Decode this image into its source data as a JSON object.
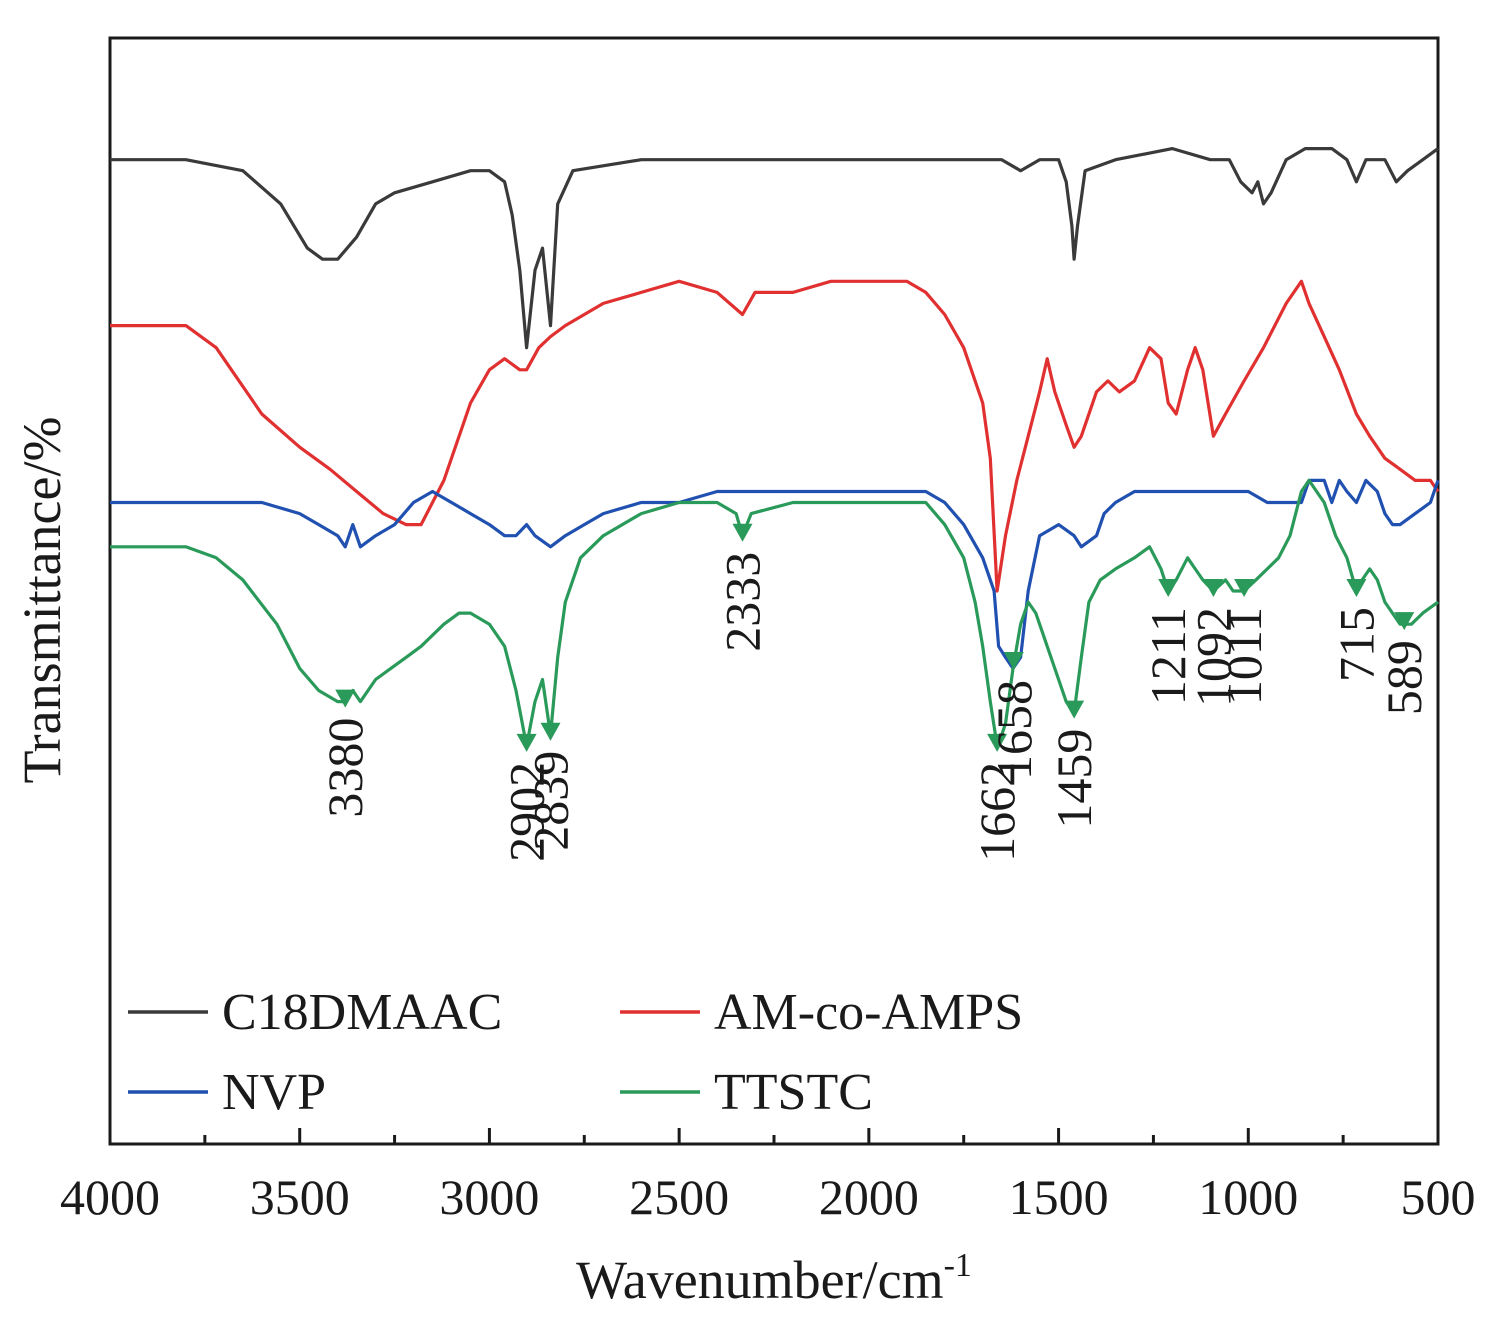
{
  "chart_data": {
    "type": "line",
    "title": "",
    "xlabel": "Wavenumber/cm",
    "xlabel_superscript": "-1",
    "ylabel": "Transmittance/%",
    "xlim": [
      4000,
      500
    ],
    "ylim": [
      0,
      100
    ],
    "x_ticks": [
      "4000",
      "3500",
      "3000",
      "2500",
      "2000",
      "1500",
      "1000",
      "500"
    ],
    "grid": false,
    "legend_position": "bottom-left",
    "series": [
      {
        "name": "C18DMAAC",
        "color": "#3a3a3a",
        "points": [
          [
            4000,
            89
          ],
          [
            3800,
            89
          ],
          [
            3650,
            88
          ],
          [
            3550,
            85
          ],
          [
            3480,
            81
          ],
          [
            3440,
            80
          ],
          [
            3400,
            80
          ],
          [
            3350,
            82
          ],
          [
            3300,
            85
          ],
          [
            3250,
            86
          ],
          [
            3150,
            87
          ],
          [
            3050,
            88
          ],
          [
            3000,
            88
          ],
          [
            2960,
            87
          ],
          [
            2940,
            84
          ],
          [
            2920,
            79
          ],
          [
            2902,
            72
          ],
          [
            2880,
            79
          ],
          [
            2860,
            81
          ],
          [
            2839,
            74
          ],
          [
            2820,
            85
          ],
          [
            2780,
            88
          ],
          [
            2600,
            89
          ],
          [
            2400,
            89
          ],
          [
            2200,
            89
          ],
          [
            2000,
            89
          ],
          [
            1800,
            89
          ],
          [
            1650,
            89
          ],
          [
            1600,
            88
          ],
          [
            1550,
            89
          ],
          [
            1500,
            89
          ],
          [
            1480,
            87
          ],
          [
            1465,
            83
          ],
          [
            1459,
            80
          ],
          [
            1450,
            83
          ],
          [
            1430,
            88
          ],
          [
            1350,
            89
          ],
          [
            1200,
            90
          ],
          [
            1100,
            89
          ],
          [
            1050,
            89
          ],
          [
            1020,
            87
          ],
          [
            990,
            86
          ],
          [
            975,
            87
          ],
          [
            960,
            85
          ],
          [
            940,
            86
          ],
          [
            900,
            89
          ],
          [
            850,
            90
          ],
          [
            780,
            90
          ],
          [
            740,
            89
          ],
          [
            715,
            87
          ],
          [
            690,
            89
          ],
          [
            640,
            89
          ],
          [
            610,
            87
          ],
          [
            580,
            88
          ],
          [
            540,
            89
          ],
          [
            500,
            90
          ]
        ]
      },
      {
        "name": "AM-co-AMPS",
        "color": "#e03030",
        "points": [
          [
            4000,
            74
          ],
          [
            3800,
            74
          ],
          [
            3720,
            72
          ],
          [
            3680,
            70
          ],
          [
            3600,
            66
          ],
          [
            3500,
            63
          ],
          [
            3420,
            61
          ],
          [
            3350,
            59
          ],
          [
            3280,
            57
          ],
          [
            3220,
            56
          ],
          [
            3180,
            56
          ],
          [
            3120,
            60
          ],
          [
            3050,
            67
          ],
          [
            3000,
            70
          ],
          [
            2960,
            71
          ],
          [
            2920,
            70
          ],
          [
            2902,
            70
          ],
          [
            2870,
            72
          ],
          [
            2839,
            73
          ],
          [
            2800,
            74
          ],
          [
            2700,
            76
          ],
          [
            2600,
            77
          ],
          [
            2500,
            78
          ],
          [
            2400,
            77
          ],
          [
            2333,
            75
          ],
          [
            2300,
            77
          ],
          [
            2200,
            77
          ],
          [
            2100,
            78
          ],
          [
            2000,
            78
          ],
          [
            1900,
            78
          ],
          [
            1850,
            77
          ],
          [
            1800,
            75
          ],
          [
            1750,
            72
          ],
          [
            1700,
            67
          ],
          [
            1680,
            62
          ],
          [
            1662,
            50
          ],
          [
            1640,
            55
          ],
          [
            1610,
            60
          ],
          [
            1580,
            64
          ],
          [
            1550,
            68
          ],
          [
            1530,
            71
          ],
          [
            1510,
            68
          ],
          [
            1480,
            65
          ],
          [
            1459,
            63
          ],
          [
            1440,
            64
          ],
          [
            1400,
            68
          ],
          [
            1370,
            69
          ],
          [
            1340,
            68
          ],
          [
            1300,
            69
          ],
          [
            1260,
            72
          ],
          [
            1230,
            71
          ],
          [
            1211,
            67
          ],
          [
            1190,
            66
          ],
          [
            1160,
            70
          ],
          [
            1140,
            72
          ],
          [
            1120,
            70
          ],
          [
            1092,
            64
          ],
          [
            1060,
            66
          ],
          [
            1011,
            69
          ],
          [
            960,
            72
          ],
          [
            900,
            76
          ],
          [
            860,
            78
          ],
          [
            840,
            76
          ],
          [
            800,
            73
          ],
          [
            760,
            70
          ],
          [
            715,
            66
          ],
          [
            680,
            64
          ],
          [
            640,
            62
          ],
          [
            600,
            61
          ],
          [
            560,
            60
          ],
          [
            520,
            60
          ],
          [
            500,
            59
          ]
        ]
      },
      {
        "name": "NVP",
        "color": "#2050b0",
        "points": [
          [
            4000,
            58
          ],
          [
            3800,
            58
          ],
          [
            3700,
            58
          ],
          [
            3600,
            58
          ],
          [
            3500,
            57
          ],
          [
            3450,
            56
          ],
          [
            3400,
            55
          ],
          [
            3380,
            54
          ],
          [
            3360,
            56
          ],
          [
            3340,
            54
          ],
          [
            3300,
            55
          ],
          [
            3250,
            56
          ],
          [
            3200,
            58
          ],
          [
            3150,
            59
          ],
          [
            3100,
            58
          ],
          [
            3050,
            57
          ],
          [
            3000,
            56
          ],
          [
            2960,
            55
          ],
          [
            2930,
            55
          ],
          [
            2902,
            56
          ],
          [
            2880,
            55
          ],
          [
            2839,
            54
          ],
          [
            2800,
            55
          ],
          [
            2750,
            56
          ],
          [
            2700,
            57
          ],
          [
            2600,
            58
          ],
          [
            2500,
            58
          ],
          [
            2400,
            59
          ],
          [
            2333,
            59
          ],
          [
            2200,
            59
          ],
          [
            2100,
            59
          ],
          [
            2000,
            59
          ],
          [
            1900,
            59
          ],
          [
            1850,
            59
          ],
          [
            1800,
            58
          ],
          [
            1750,
            56
          ],
          [
            1700,
            53
          ],
          [
            1670,
            50
          ],
          [
            1658,
            45
          ],
          [
            1640,
            44
          ],
          [
            1620,
            43
          ],
          [
            1600,
            44
          ],
          [
            1580,
            50
          ],
          [
            1550,
            55
          ],
          [
            1500,
            56
          ],
          [
            1459,
            55
          ],
          [
            1440,
            54
          ],
          [
            1400,
            55
          ],
          [
            1380,
            57
          ],
          [
            1350,
            58
          ],
          [
            1300,
            59
          ],
          [
            1250,
            59
          ],
          [
            1200,
            59
          ],
          [
            1150,
            59
          ],
          [
            1100,
            59
          ],
          [
            1050,
            59
          ],
          [
            1000,
            59
          ],
          [
            950,
            58
          ],
          [
            900,
            58
          ],
          [
            860,
            58
          ],
          [
            840,
            60
          ],
          [
            800,
            60
          ],
          [
            780,
            58
          ],
          [
            760,
            60
          ],
          [
            740,
            59
          ],
          [
            715,
            58
          ],
          [
            690,
            60
          ],
          [
            660,
            59
          ],
          [
            640,
            57
          ],
          [
            620,
            56
          ],
          [
            600,
            56
          ],
          [
            560,
            57
          ],
          [
            520,
            58
          ],
          [
            500,
            60
          ]
        ]
      },
      {
        "name": "TTSTC",
        "color": "#2a9a5a",
        "points": [
          [
            4000,
            54
          ],
          [
            3800,
            54
          ],
          [
            3720,
            53
          ],
          [
            3650,
            51
          ],
          [
            3560,
            47
          ],
          [
            3500,
            43
          ],
          [
            3450,
            41
          ],
          [
            3400,
            40
          ],
          [
            3380,
            40
          ],
          [
            3360,
            41
          ],
          [
            3340,
            40
          ],
          [
            3300,
            42
          ],
          [
            3260,
            43
          ],
          [
            3220,
            44
          ],
          [
            3180,
            45
          ],
          [
            3120,
            47
          ],
          [
            3080,
            48
          ],
          [
            3050,
            48
          ],
          [
            3000,
            47
          ],
          [
            2960,
            45
          ],
          [
            2930,
            41
          ],
          [
            2902,
            36
          ],
          [
            2880,
            40
          ],
          [
            2860,
            42
          ],
          [
            2839,
            37
          ],
          [
            2820,
            44
          ],
          [
            2800,
            49
          ],
          [
            2760,
            53
          ],
          [
            2700,
            55
          ],
          [
            2600,
            57
          ],
          [
            2500,
            58
          ],
          [
            2400,
            58
          ],
          [
            2350,
            57
          ],
          [
            2333,
            55
          ],
          [
            2310,
            57
          ],
          [
            2200,
            58
          ],
          [
            2100,
            58
          ],
          [
            2000,
            58
          ],
          [
            1900,
            58
          ],
          [
            1850,
            58
          ],
          [
            1800,
            56
          ],
          [
            1750,
            53
          ],
          [
            1720,
            49
          ],
          [
            1700,
            45
          ],
          [
            1680,
            40
          ],
          [
            1662,
            36
          ],
          [
            1650,
            37
          ],
          [
            1640,
            38
          ],
          [
            1620,
            43
          ],
          [
            1600,
            47
          ],
          [
            1580,
            49
          ],
          [
            1560,
            48
          ],
          [
            1540,
            46
          ],
          [
            1520,
            44
          ],
          [
            1500,
            42
          ],
          [
            1480,
            40
          ],
          [
            1459,
            39
          ],
          [
            1440,
            44
          ],
          [
            1420,
            49
          ],
          [
            1390,
            51
          ],
          [
            1350,
            52
          ],
          [
            1300,
            53
          ],
          [
            1260,
            54
          ],
          [
            1230,
            52
          ],
          [
            1211,
            50
          ],
          [
            1190,
            51
          ],
          [
            1160,
            53
          ],
          [
            1140,
            52
          ],
          [
            1120,
            51
          ],
          [
            1092,
            50
          ],
          [
            1060,
            51
          ],
          [
            1040,
            50
          ],
          [
            1011,
            50
          ],
          [
            980,
            51
          ],
          [
            950,
            52
          ],
          [
            920,
            53
          ],
          [
            890,
            55
          ],
          [
            860,
            59
          ],
          [
            840,
            60
          ],
          [
            800,
            58
          ],
          [
            770,
            55
          ],
          [
            740,
            53
          ],
          [
            715,
            50
          ],
          [
            700,
            51
          ],
          [
            680,
            52
          ],
          [
            660,
            51
          ],
          [
            640,
            49
          ],
          [
            620,
            48
          ],
          [
            600,
            47
          ],
          [
            589,
            47
          ],
          [
            570,
            47
          ],
          [
            540,
            48
          ],
          [
            500,
            49
          ]
        ]
      }
    ],
    "annotations": [
      {
        "label": "3380",
        "x": 3380,
        "series": "TTSTC"
      },
      {
        "label": "2902",
        "x": 2902,
        "series": "TTSTC"
      },
      {
        "label": "2839",
        "x": 2839,
        "series": "TTSTC"
      },
      {
        "label": "2333",
        "x": 2333,
        "series": "TTSTC"
      },
      {
        "label": "1662",
        "x": 1662,
        "series": "TTSTC"
      },
      {
        "label": "1658",
        "x": 1618,
        "series": "TTSTC"
      },
      {
        "label": "1459",
        "x": 1459,
        "series": "TTSTC"
      },
      {
        "label": "1211",
        "x": 1211,
        "series": "TTSTC"
      },
      {
        "label": "1092",
        "x": 1092,
        "series": "TTSTC"
      },
      {
        "label": "1011",
        "x": 1011,
        "series": "TTSTC"
      },
      {
        "label": "715",
        "x": 715,
        "series": "TTSTC"
      },
      {
        "label": "589",
        "x": 589,
        "series": "TTSTC"
      }
    ]
  }
}
